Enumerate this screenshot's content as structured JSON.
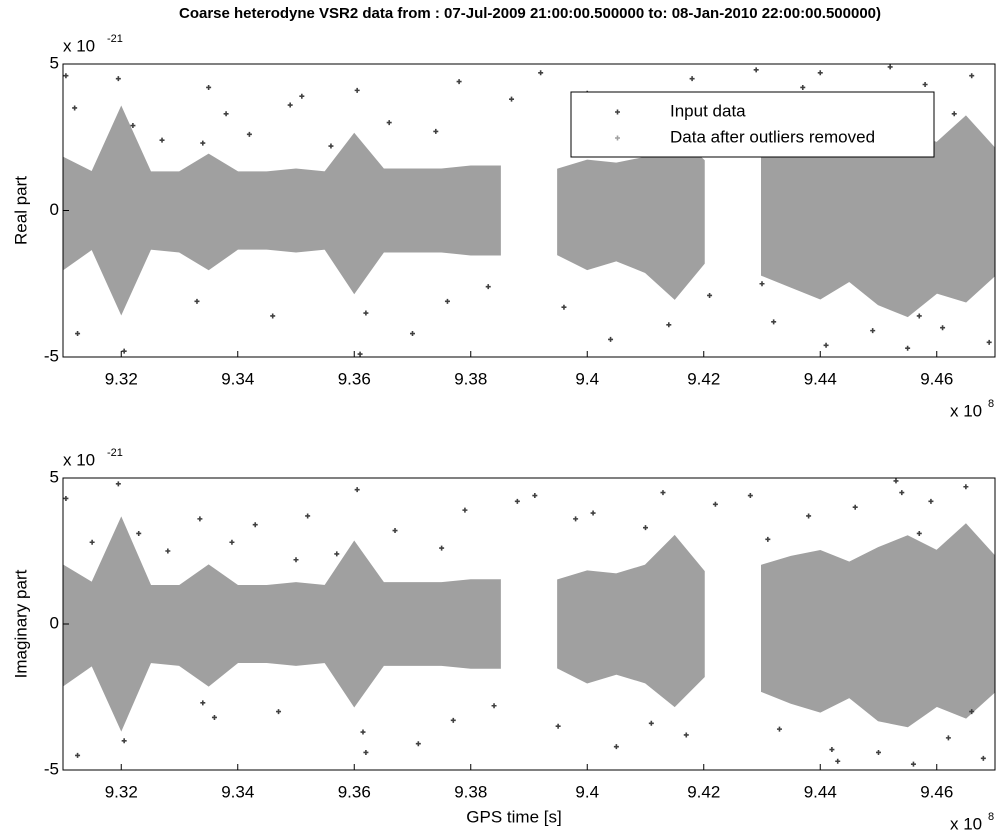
{
  "chart_data": [
    {
      "type": "scatter",
      "title": "Coarse heterodyne VSR2 data from : 07-Jul-2009 21:00:00.500000  to: 08-Jan-2010 22:00:00.500000)",
      "ylabel": "Real part",
      "y_multiplier": [
        "x 10",
        "-21"
      ],
      "x_multiplier": [
        "x 10",
        "8"
      ],
      "xlim": [
        9.31,
        9.47
      ],
      "ylim": [
        -5,
        5
      ],
      "xticks": [
        9.32,
        9.34,
        9.36,
        9.38,
        9.4,
        9.42,
        9.44,
        9.46
      ],
      "yticks": [
        -5,
        0,
        5
      ],
      "legend": "upper right",
      "series": [
        {
          "name": "Input data",
          "color": "#404040",
          "x": [
            9.3105,
            9.312,
            9.3195,
            9.3205,
            9.322,
            9.327,
            9.333,
            9.335,
            9.338,
            9.342,
            9.346,
            9.351,
            9.356,
            9.3605,
            9.362,
            9.366,
            9.37,
            9.374,
            9.378,
            9.383,
            9.387,
            9.392,
            9.396,
            9.4,
            9.404,
            9.409,
            9.414,
            9.418,
            9.421,
            9.429,
            9.432,
            9.437,
            9.441,
            9.445,
            9.449,
            9.452,
            9.455,
            9.458,
            9.461,
            9.466,
            9.469,
            9.3125,
            9.334,
            9.349,
            9.361,
            9.376,
            9.399,
            9.412,
            9.43,
            9.44,
            9.453,
            9.457,
            9.463
          ],
          "values": [
            4.6,
            3.5,
            4.5,
            -4.8,
            2.9,
            2.4,
            -3.1,
            4.2,
            3.3,
            2.6,
            -3.6,
            3.9,
            2.2,
            4.1,
            -3.5,
            3.0,
            -4.2,
            2.7,
            4.4,
            -2.6,
            3.8,
            4.7,
            -3.3,
            4.0,
            -4.4,
            3.6,
            -3.9,
            4.5,
            -2.9,
            4.8,
            -3.8,
            4.2,
            -4.6,
            3.9,
            -4.1,
            4.9,
            -4.7,
            4.3,
            -4.0,
            4.6,
            -4.5,
            -4.2,
            2.3,
            3.6,
            -4.9,
            -3.1,
            3.2,
            3.0,
            -2.5,
            4.7,
            3.5,
            -3.6,
            3.3
          ]
        },
        {
          "name": "Data after outliers removed",
          "color": "#a0a0a0",
          "x": [
            9.31,
            9.315,
            9.32,
            9.325,
            9.33,
            9.335,
            9.34,
            9.345,
            9.35,
            9.355,
            9.36,
            9.365,
            9.37,
            9.375,
            9.38,
            9.385,
            9.39,
            9.395,
            9.4,
            9.405,
            9.41,
            9.415,
            9.42,
            9.425,
            9.43,
            9.435,
            9.44,
            9.445,
            9.45,
            9.455,
            9.46,
            9.465,
            9.47
          ],
          "high": [
            1.8,
            1.3,
            3.5,
            1.3,
            1.3,
            1.9,
            1.3,
            1.3,
            1.4,
            1.3,
            2.6,
            1.4,
            1.4,
            1.4,
            1.5,
            1.5,
            null,
            1.4,
            1.7,
            1.6,
            1.8,
            2.6,
            1.7,
            null,
            1.9,
            2.1,
            2.3,
            2.0,
            2.4,
            2.7,
            2.3,
            3.2,
            2.1
          ],
          "low": [
            -2.0,
            -1.3,
            -3.5,
            -1.3,
            -1.4,
            -2.0,
            -1.3,
            -1.3,
            -1.4,
            -1.3,
            -2.8,
            -1.4,
            -1.4,
            -1.4,
            -1.5,
            -1.5,
            null,
            -1.5,
            -2.0,
            -1.7,
            -2.1,
            -3.0,
            -1.8,
            null,
            -2.2,
            -2.6,
            -3.0,
            -2.4,
            -3.2,
            -3.6,
            -2.8,
            -3.1,
            -2.2
          ]
        }
      ]
    },
    {
      "type": "scatter",
      "ylabel": "Imaginary part",
      "xlabel": "GPS time [s]",
      "y_multiplier": [
        "x 10",
        "-21"
      ],
      "x_multiplier": [
        "x 10",
        "8"
      ],
      "xlim": [
        9.31,
        9.47
      ],
      "ylim": [
        -5,
        5
      ],
      "xticks": [
        9.32,
        9.34,
        9.36,
        9.38,
        9.4,
        9.42,
        9.44,
        9.46
      ],
      "yticks": [
        -5,
        0,
        5
      ],
      "series": [
        {
          "color": "#404040",
          "x": [
            9.3105,
            9.3125,
            9.3195,
            9.3205,
            9.323,
            9.328,
            9.3335,
            9.336,
            9.339,
            9.343,
            9.347,
            9.352,
            9.357,
            9.3605,
            9.3615,
            9.367,
            9.371,
            9.375,
            9.379,
            9.384,
            9.388,
            9.391,
            9.395,
            9.401,
            9.405,
            9.41,
            9.413,
            9.417,
            9.422,
            9.428,
            9.433,
            9.438,
            9.442,
            9.446,
            9.45,
            9.453,
            9.456,
            9.459,
            9.462,
            9.465,
            9.468,
            9.315,
            9.334,
            9.35,
            9.362,
            9.377,
            9.398,
            9.411,
            9.431,
            9.443,
            9.454,
            9.457,
            9.466
          ],
          "values": [
            4.3,
            -4.5,
            4.8,
            -4.0,
            3.1,
            2.5,
            3.6,
            -3.2,
            2.8,
            3.4,
            -3.0,
            3.7,
            2.4,
            4.6,
            -3.7,
            3.2,
            -4.1,
            2.6,
            3.9,
            -2.8,
            4.2,
            4.4,
            -3.5,
            3.8,
            -4.2,
            3.3,
            4.5,
            -3.8,
            4.1,
            4.4,
            -3.6,
            3.7,
            -4.3,
            4.0,
            -4.4,
            4.9,
            -4.8,
            4.2,
            -3.9,
            4.7,
            -4.6,
            2.8,
            -2.7,
            2.2,
            -4.4,
            -3.3,
            3.6,
            -3.4,
            2.9,
            -4.7,
            4.5,
            3.1,
            -3.0
          ]
        },
        {
          "color": "#a0a0a0",
          "x": [
            9.31,
            9.315,
            9.32,
            9.325,
            9.33,
            9.335,
            9.34,
            9.345,
            9.35,
            9.355,
            9.36,
            9.365,
            9.37,
            9.375,
            9.38,
            9.385,
            9.39,
            9.395,
            9.4,
            9.405,
            9.41,
            9.415,
            9.42,
            9.425,
            9.43,
            9.435,
            9.44,
            9.445,
            9.45,
            9.455,
            9.46,
            9.465,
            9.47
          ],
          "high": [
            2.0,
            1.4,
            3.6,
            1.3,
            1.3,
            2.0,
            1.3,
            1.3,
            1.4,
            1.3,
            2.8,
            1.4,
            1.4,
            1.4,
            1.5,
            1.5,
            null,
            1.5,
            1.8,
            1.7,
            2.0,
            3.0,
            1.8,
            null,
            2.0,
            2.3,
            2.5,
            2.1,
            2.6,
            3.0,
            2.5,
            3.4,
            2.3
          ],
          "low": [
            -2.1,
            -1.4,
            -3.6,
            -1.3,
            -1.4,
            -2.1,
            -1.3,
            -1.3,
            -1.4,
            -1.3,
            -2.8,
            -1.4,
            -1.4,
            -1.4,
            -1.5,
            -1.5,
            null,
            -1.5,
            -2.0,
            -1.7,
            -2.0,
            -2.8,
            -1.8,
            null,
            -2.3,
            -2.7,
            -3.0,
            -2.5,
            -3.3,
            -3.5,
            -2.8,
            -3.2,
            -2.3
          ]
        }
      ]
    }
  ]
}
